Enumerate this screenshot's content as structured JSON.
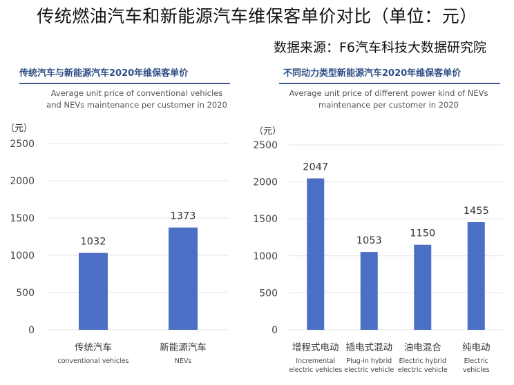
{
  "title": "传统燃油汽车和新能源汽车维保客单价对比（单位：元）",
  "source": "数据来源：F6汽车科技大数据研究院",
  "chart_data": [
    {
      "type": "bar",
      "title": "传统汽车与新能源汽车2020年维保客单价",
      "subtitle": [
        "Average unit price of conventional vehicles",
        "and NEVs maintenance per customer in 2020"
      ],
      "unit_label": "（元）",
      "categories": [
        "传统汽车",
        "新能源汽车"
      ],
      "categories_en": [
        [
          "conventional vehicles"
        ],
        [
          "NEVs"
        ]
      ],
      "values": [
        1032,
        1373
      ],
      "yticks": [
        0,
        500,
        1000,
        1500,
        2000,
        2500
      ],
      "ylim": [
        0,
        2500
      ],
      "grid": true,
      "bar_color": "#4a6fc4"
    },
    {
      "type": "bar",
      "title": "不同动力类型新能源汽车2020年维保客单价",
      "subtitle": [
        "Average unit price of different power kind of NEVs",
        "maintenance per customer in 2020"
      ],
      "unit_label": "（元）",
      "categories": [
        "增程式电动",
        "插电式混动",
        "油电混合",
        "纯电动"
      ],
      "categories_en": [
        [
          "Incremental",
          "electric vehicles"
        ],
        [
          "Plug-in hybrid",
          "electric vehicle"
        ],
        [
          "Electric hybrid",
          "electric vehicle"
        ],
        [
          "Electric",
          "vehicles"
        ]
      ],
      "values": [
        2047,
        1053,
        1150,
        1455
      ],
      "yticks": [
        0,
        500,
        1000,
        1500,
        2000,
        2500
      ],
      "ylim": [
        0,
        2500
      ],
      "grid": true,
      "bar_color": "#4a6fc4"
    }
  ]
}
